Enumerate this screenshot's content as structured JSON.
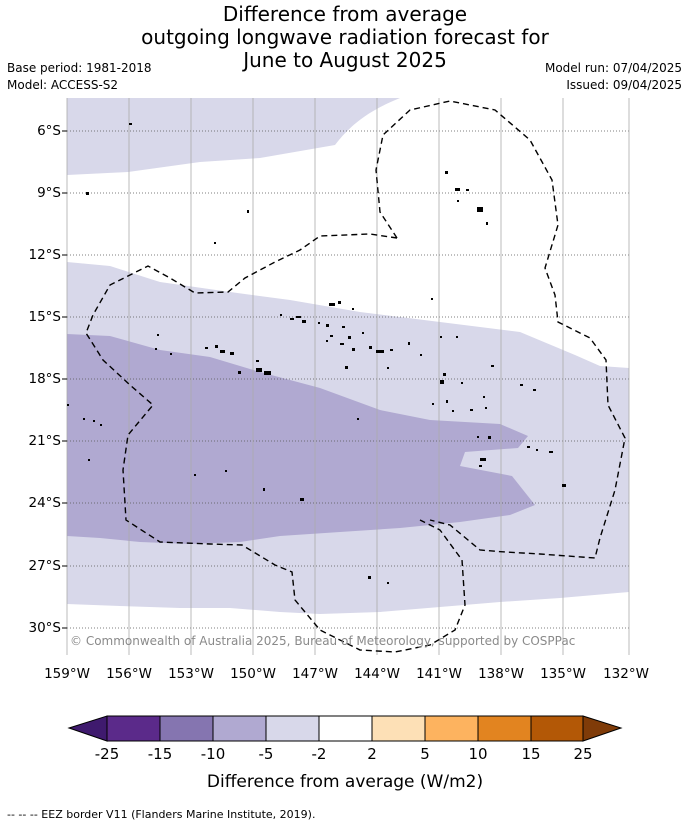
{
  "title": {
    "line1": "Difference from average",
    "line2": "outgoing longwave radiation forecast for",
    "line3": "June to August 2025"
  },
  "meta": {
    "base_period": "Base period: 1981-2018",
    "model": "Model: ACCESS-S2",
    "model_run": "Model run: 07/04/2025",
    "issued": "Issued: 09/04/2025"
  },
  "map": {
    "latitude_labels": [
      "6°S",
      "9°S",
      "12°S",
      "15°S",
      "18°S",
      "21°S",
      "24°S",
      "27°S",
      "30°S"
    ],
    "longitude_labels": [
      "159°W",
      "156°W",
      "153°W",
      "150°W",
      "147°W",
      "144°W",
      "141°W",
      "138°W",
      "135°W",
      "132°W"
    ],
    "copyright": "© Commonwealth of Australia 2025, Bureau of Meteorology, supported by COSPPac"
  },
  "colorbar": {
    "title": "Difference from average (W/m2)",
    "tick_labels": [
      "-25",
      "-15",
      "-10",
      "-5",
      "-2",
      "2",
      "5",
      "10",
      "15",
      "25"
    ],
    "colors": {
      "below_min": "#3f1a6e",
      "bins": [
        "#5b2a8a",
        "#8575b0",
        "#b0a9d1",
        "#d8d8ea",
        "#ffffff",
        "#fde0b6",
        "#fdb35f",
        "#e28420",
        "#b35806"
      ],
      "above_max": "#7f3b08"
    }
  },
  "footer": {
    "legend": "--  --  -- EEZ border V11 (Flanders Marine Institute, 2019)."
  }
}
